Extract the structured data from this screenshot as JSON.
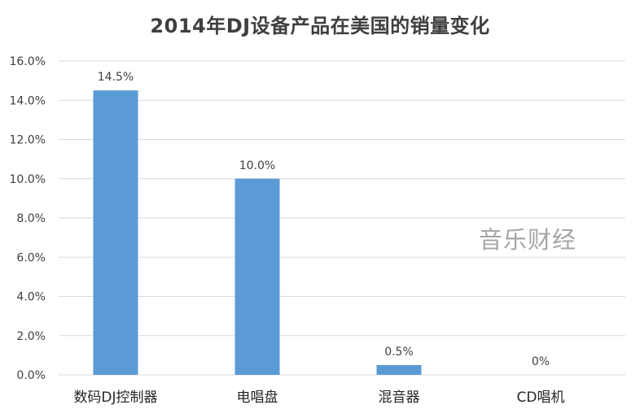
{
  "chart_data": {
    "type": "bar",
    "title": "2014年DJ设备产品在美国的销量变化",
    "categories": [
      "数码DJ控制器",
      "电唱盘",
      "混音器",
      "CD唱机"
    ],
    "values": [
      14.5,
      10.0,
      0.5,
      0
    ],
    "data_labels": [
      "14.5%",
      "10.0%",
      "0.5%",
      "0%"
    ],
    "ylim": [
      0,
      16
    ],
    "yticks": [
      "0.0%",
      "2.0%",
      "4.0%",
      "6.0%",
      "8.0%",
      "10.0%",
      "12.0%",
      "14.0%",
      "16.0%"
    ],
    "xlabel": "",
    "ylabel": "",
    "grid": true,
    "bar_color": "#5b9bd5",
    "grid_color": "#d9d9d9"
  },
  "watermark": "音乐财经"
}
